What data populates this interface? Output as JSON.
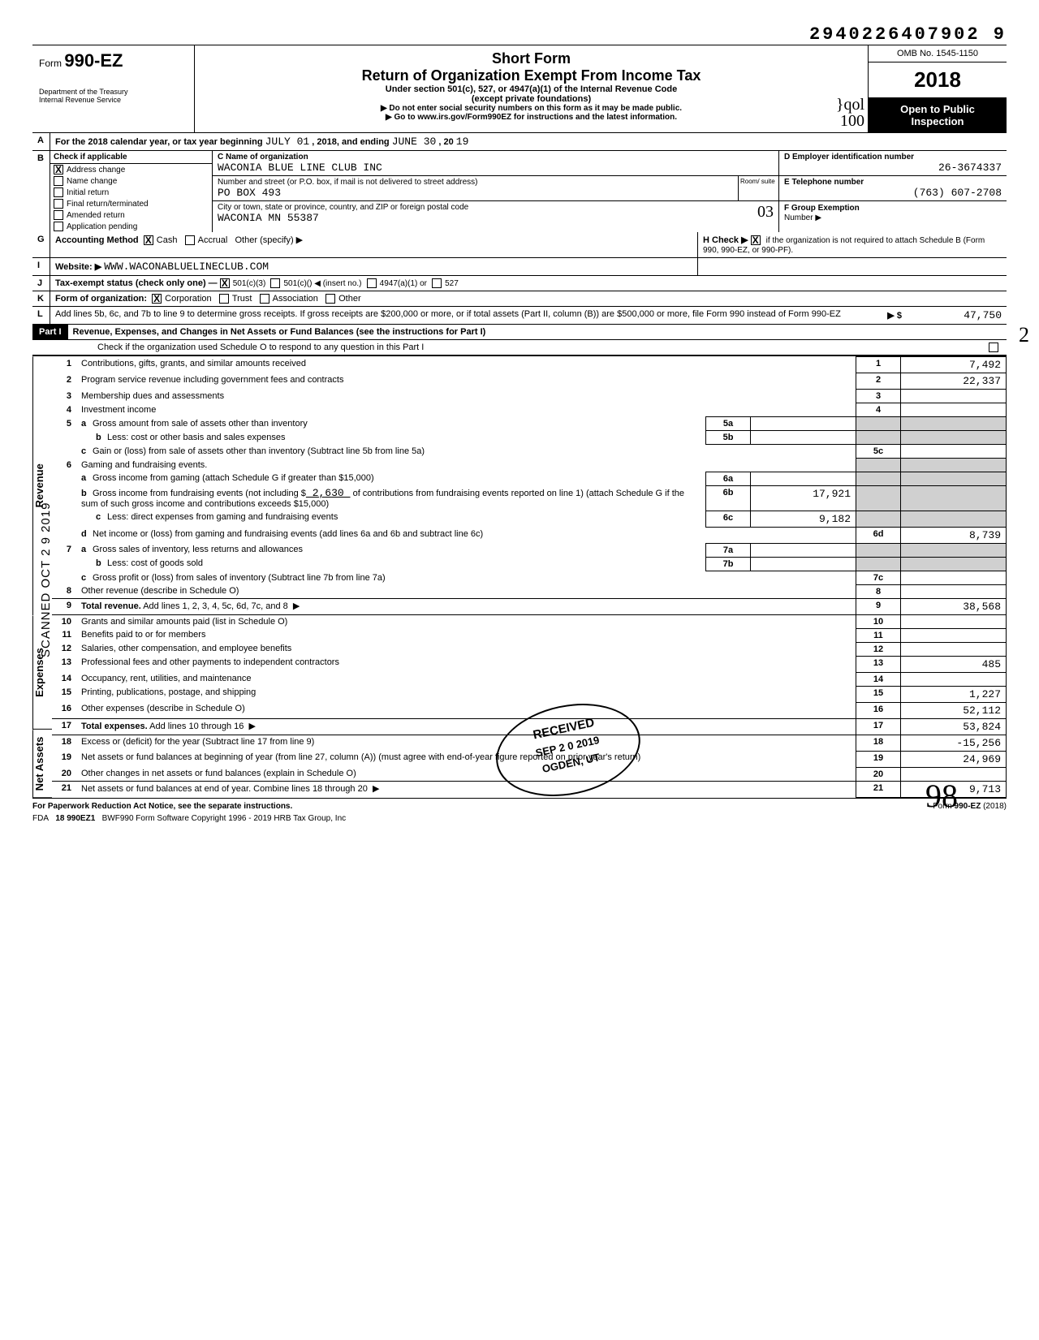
{
  "dln": "2940226407902 9",
  "omb": "OMB No. 1545-1150",
  "year": "2018",
  "open_public_1": "Open to Public",
  "open_public_2": "Inspection",
  "form_label": "Form",
  "form_number": "990-EZ",
  "dept_1": "Department of the Treasury",
  "dept_2": "Internal Revenue Service",
  "title_short": "Short Form",
  "title_main": "Return of Organization Exempt From Income Tax",
  "title_sub": "Under section 501(c), 527, or 4947(a)(1) of the Internal Revenue Code",
  "title_except": "(except private foundations)",
  "title_arrow1": "▶ Do not enter social security numbers on this form as it may be made public.",
  "title_arrow2": "▶ Go to www.irs.gov/Form990EZ for instructions and the latest information.",
  "hand_qol": "}qol",
  "hand_100": "100",
  "line_a_pre": "For the 2018 calendar year, or tax year beginning",
  "line_a_begin": "JULY 01",
  "line_a_mid": ", 2018, and ending",
  "line_a_end": "JUNE 30",
  "line_a_post": ", 20",
  "line_a_yy": "19",
  "b_label": "Check if applicable",
  "b_items": [
    {
      "label": "Address change",
      "checked": true
    },
    {
      "label": "Name change",
      "checked": false
    },
    {
      "label": "Initial return",
      "checked": false
    },
    {
      "label": "Final return/terminated",
      "checked": false
    },
    {
      "label": "Amended return",
      "checked": false
    },
    {
      "label": "Application pending",
      "checked": false
    }
  ],
  "c_label": "C Name of organization",
  "c_value": "WACONIA BLUE LINE CLUB INC",
  "addr_label": "Number and street (or P.O. box, if mail is not delivered to street address)",
  "addr_value": "PO BOX 493",
  "room_label": "Room/\nsuite",
  "city_label": "City or town, state or province, country, and ZIP or foreign postal code",
  "city_value": "WACONIA MN 55387",
  "city_hand": "03",
  "d_label": "D Employer identification number",
  "d_value": "26-3674337",
  "e_label": "E Telephone number",
  "e_value": "(763) 607-2708",
  "f_label": "F Group Exemption",
  "f_sub": "Number ▶",
  "g_label": "Accounting Method",
  "g_cash": "Cash",
  "g_accrual": "Accrual",
  "g_other": "Other (specify) ▶",
  "h_label": "H Check ▶",
  "h_text": "if the organization is not required to attach Schedule B (Form 990, 990-EZ, or 990-PF).",
  "i_label": "Website: ▶",
  "i_value": "WWW.WACONABLUELINECLUB.COM",
  "j_label": "Tax-exempt status (check only one) —",
  "j_501c3": "501(c)(3)",
  "j_501c": "501(c)(",
  "j_insert": ") ◀ (insert no.)",
  "j_4947": "4947(a)(1) or",
  "j_527": "527",
  "k_label": "Form of organization:",
  "k_corp": "Corporation",
  "k_trust": "Trust",
  "k_assoc": "Association",
  "k_other": "Other",
  "l_label": "Add lines 5b, 6c, and 7b to line 9 to determine gross receipts. If gross receipts are $200,000 or more, or if total assets (Part II, column (B)) are $500,000 or more, file Form 990 instead of Form 990-EZ",
  "l_arrow": "▶ $",
  "l_value": "47,750",
  "l_hand_2": "2",
  "part1_label": "Part I",
  "part1_title": "Revenue, Expenses, and Changes in Net Assets or Fund Balances (see the instructions for Part I)",
  "part1_check": "Check if the organization used Schedule O to respond to any question in this Part I",
  "side_revenue": "Revenue",
  "side_expenses": "Expenses",
  "side_netassets": "Net Assets",
  "scanned": "SCANNED OCT 2 9 2019",
  "lines": {
    "1": {
      "desc": "Contributions, gifts, grants, and similar amounts received",
      "amt": "7,492"
    },
    "2": {
      "desc": "Program service revenue including government fees and contracts",
      "amt": "22,337"
    },
    "3": {
      "desc": "Membership dues and assessments",
      "amt": ""
    },
    "4": {
      "desc": "Investment income",
      "amt": ""
    },
    "5a": {
      "desc": "Gross amount from sale of assets other than inventory",
      "box": "5a",
      "amt": ""
    },
    "5b": {
      "desc": "Less: cost or other basis and sales expenses",
      "box": "5b",
      "amt": ""
    },
    "5c": {
      "desc": "Gain or (loss) from sale of assets other than inventory (Subtract line 5b from line 5a)",
      "amt": ""
    },
    "6": {
      "desc": "Gaming and fundraising events."
    },
    "6a": {
      "desc": "Gross income from gaming (attach Schedule G if greater than $15,000)",
      "box": "6a",
      "amt": ""
    },
    "6b_pre": "Gross income from fundraising events (not including  $",
    "6b_contrib": "2,630",
    "6b_post": "of contributions from fundraising events reported on line 1) (attach Schedule G if the sum of such gross income and contributions exceeds $15,000)",
    "6b": {
      "box": "6b",
      "amt": "17,921"
    },
    "6c": {
      "desc": "Less: direct expenses from gaming and fundraising events",
      "box": "6c",
      "amt": "9,182"
    },
    "6d": {
      "desc": "Net income or (loss) from gaming and fundraising events (add lines 6a and 6b and subtract line 6c)",
      "amt": "8,739"
    },
    "7a": {
      "desc": "Gross sales of inventory, less returns and allowances",
      "box": "7a",
      "amt": ""
    },
    "7b": {
      "desc": "Less: cost of goods sold",
      "box": "7b",
      "amt": ""
    },
    "7c": {
      "desc": "Gross profit or (loss) from sales of inventory (Subtract line 7b from line 7a)",
      "amt": ""
    },
    "8": {
      "desc": "Other revenue (describe in Schedule O)",
      "amt": ""
    },
    "9": {
      "desc": "Total revenue. Add lines 1, 2, 3, 4, 5c, 6d, 7c, and 8",
      "amt": "38,568"
    },
    "10": {
      "desc": "Grants and similar amounts paid (list in Schedule O)",
      "amt": ""
    },
    "11": {
      "desc": "Benefits paid to or for members",
      "amt": ""
    },
    "12": {
      "desc": "Salaries, other compensation, and employee benefits",
      "amt": ""
    },
    "13": {
      "desc": "Professional fees and other payments to independent contractors",
      "amt": "485"
    },
    "14": {
      "desc": "Occupancy, rent, utilities, and maintenance",
      "amt": ""
    },
    "15": {
      "desc": "Printing, publications, postage, and shipping",
      "amt": "1,227"
    },
    "16": {
      "desc": "Other expenses (describe in Schedule O)",
      "amt": "52,112"
    },
    "17": {
      "desc": "Total expenses. Add lines 10 through 16",
      "amt": "53,824"
    },
    "18": {
      "desc": "Excess or (deficit) for the year (Subtract line 17 from line 9)",
      "amt": "-15,256"
    },
    "19": {
      "desc": "Net assets or fund balances at beginning of year (from line 27, column (A)) (must agree with end-of-year figure reported on prior year's return)",
      "amt": "24,969"
    },
    "20": {
      "desc": "Other changes in net assets or fund balances (explain in Schedule O)",
      "amt": ""
    },
    "21": {
      "desc": "Net assets or fund balances at end of year. Combine lines 18 through 20",
      "amt": "9,713"
    }
  },
  "stamp_received": "RECEIVED",
  "stamp_date": "SEP 2 0 2019",
  "stamp_ogden": "OGDEN, UT",
  "footer_left": "For Paperwork Reduction Act Notice, see the separate instructions.",
  "footer_right": "Form 990-EZ (2018)",
  "footer_fda": "FDA",
  "footer_code": "18 990EZ1",
  "footer_soft": "BWF990   Form Software Copyright 1996 - 2019 HRB Tax Group, Inc",
  "sig_initials": "98"
}
